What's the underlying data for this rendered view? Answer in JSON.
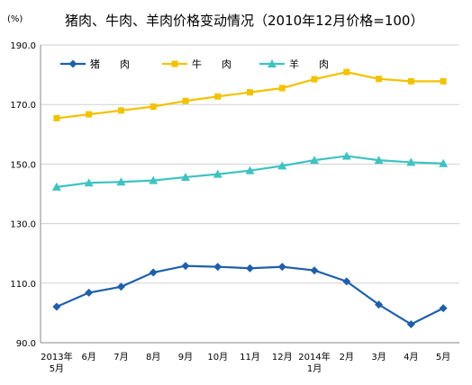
{
  "chart_data": {
    "type": "line",
    "title": "猪肉、牛肉、羊肉价格变动情况（2010年12月价格=100）",
    "unit_label": "(%)",
    "categories": [
      [
        "2013年",
        "5月"
      ],
      [
        "6月"
      ],
      [
        "7月"
      ],
      [
        "8月"
      ],
      [
        "9月"
      ],
      [
        "10月"
      ],
      [
        "11月"
      ],
      [
        "12月"
      ],
      [
        "2014年",
        "1月"
      ],
      [
        "2月"
      ],
      [
        "3月"
      ],
      [
        "4月"
      ],
      [
        "5月"
      ]
    ],
    "ylim": [
      90,
      190
    ],
    "yticks": [
      "90.0",
      "110.0",
      "130.0",
      "150.0",
      "170.0",
      "190.0"
    ],
    "ytick_values": [
      90,
      110,
      130,
      150,
      170,
      190
    ],
    "grid": true,
    "legend": "top-left",
    "series": [
      {
        "name": "猪　　肉",
        "color": "#1f5faa",
        "marker": "diamond",
        "values": [
          102.1,
          106.8,
          108.8,
          113.6,
          115.8,
          115.5,
          115.0,
          115.5,
          114.3,
          110.6,
          102.8,
          96.2,
          101.6
        ]
      },
      {
        "name": "牛　　肉",
        "color": "#f2c200",
        "marker": "square",
        "values": [
          165.4,
          166.7,
          168.0,
          169.3,
          171.2,
          172.7,
          174.1,
          175.5,
          178.5,
          180.9,
          178.6,
          177.8,
          177.8
        ]
      },
      {
        "name": "羊　　肉",
        "color": "#3ec2c2",
        "marker": "triangle",
        "values": [
          142.3,
          143.7,
          144.0,
          144.5,
          145.6,
          146.6,
          147.8,
          149.4,
          151.3,
          152.7,
          151.3,
          150.6,
          150.2
        ]
      }
    ]
  }
}
